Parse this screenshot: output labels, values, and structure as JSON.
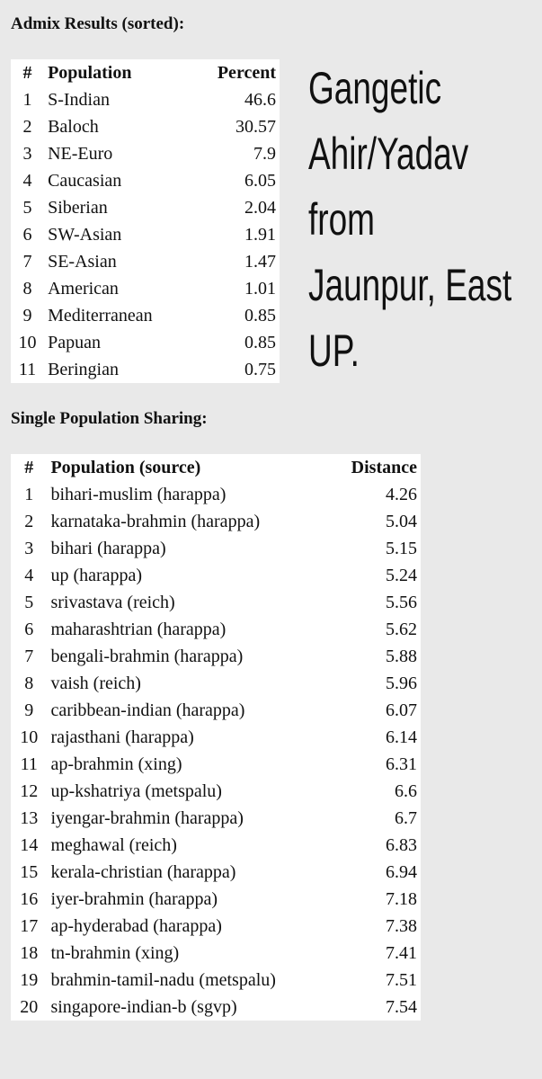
{
  "admix": {
    "title": "Admix Results (sorted):",
    "headers": [
      "#",
      "Population",
      "Percent"
    ],
    "rows": [
      [
        1,
        "S-Indian",
        46.6
      ],
      [
        2,
        "Baloch",
        30.57
      ],
      [
        3,
        "NE-Euro",
        7.9
      ],
      [
        4,
        "Caucasian",
        6.05
      ],
      [
        5,
        "Siberian",
        2.04
      ],
      [
        6,
        "SW-Asian",
        1.91
      ],
      [
        7,
        "SE-Asian",
        1.47
      ],
      [
        8,
        "American",
        1.01
      ],
      [
        9,
        "Mediterranean",
        0.85
      ],
      [
        10,
        "Papuan",
        0.85
      ],
      [
        11,
        "Beringian",
        0.75
      ]
    ]
  },
  "note": [
    "Gangetic",
    "Ahir/Yadav",
    "from",
    "Jaunpur, East",
    "UP."
  ],
  "sharing": {
    "title": "Single Population Sharing:",
    "headers": [
      "#",
      "Population (source)",
      "Distance"
    ],
    "rows": [
      [
        1,
        "bihari-muslim (harappa)",
        4.26
      ],
      [
        2,
        "karnataka-brahmin (harappa)",
        5.04
      ],
      [
        3,
        "bihari (harappa)",
        5.15
      ],
      [
        4,
        "up (harappa)",
        5.24
      ],
      [
        5,
        "srivastava (reich)",
        5.56
      ],
      [
        6,
        "maharashtrian (harappa)",
        5.62
      ],
      [
        7,
        "bengali-brahmin (harappa)",
        5.88
      ],
      [
        8,
        "vaish (reich)",
        5.96
      ],
      [
        9,
        "caribbean-indian (harappa)",
        6.07
      ],
      [
        10,
        "rajasthani (harappa)",
        6.14
      ],
      [
        11,
        "ap-brahmin (xing)",
        6.31
      ],
      [
        12,
        "up-kshatriya (metspalu)",
        6.6
      ],
      [
        13,
        "iyengar-brahmin (harappa)",
        6.7
      ],
      [
        14,
        "meghawal (reich)",
        6.83
      ],
      [
        15,
        "kerala-christian (harappa)",
        6.94
      ],
      [
        16,
        "iyer-brahmin (harappa)",
        7.18
      ],
      [
        17,
        "ap-hyderabad (harappa)",
        7.38
      ],
      [
        18,
        "tn-brahmin (xing)",
        7.41
      ],
      [
        19,
        "brahmin-tamil-nadu (metspalu)",
        7.51
      ],
      [
        20,
        "singapore-indian-b (sgvp)",
        7.54
      ]
    ]
  }
}
